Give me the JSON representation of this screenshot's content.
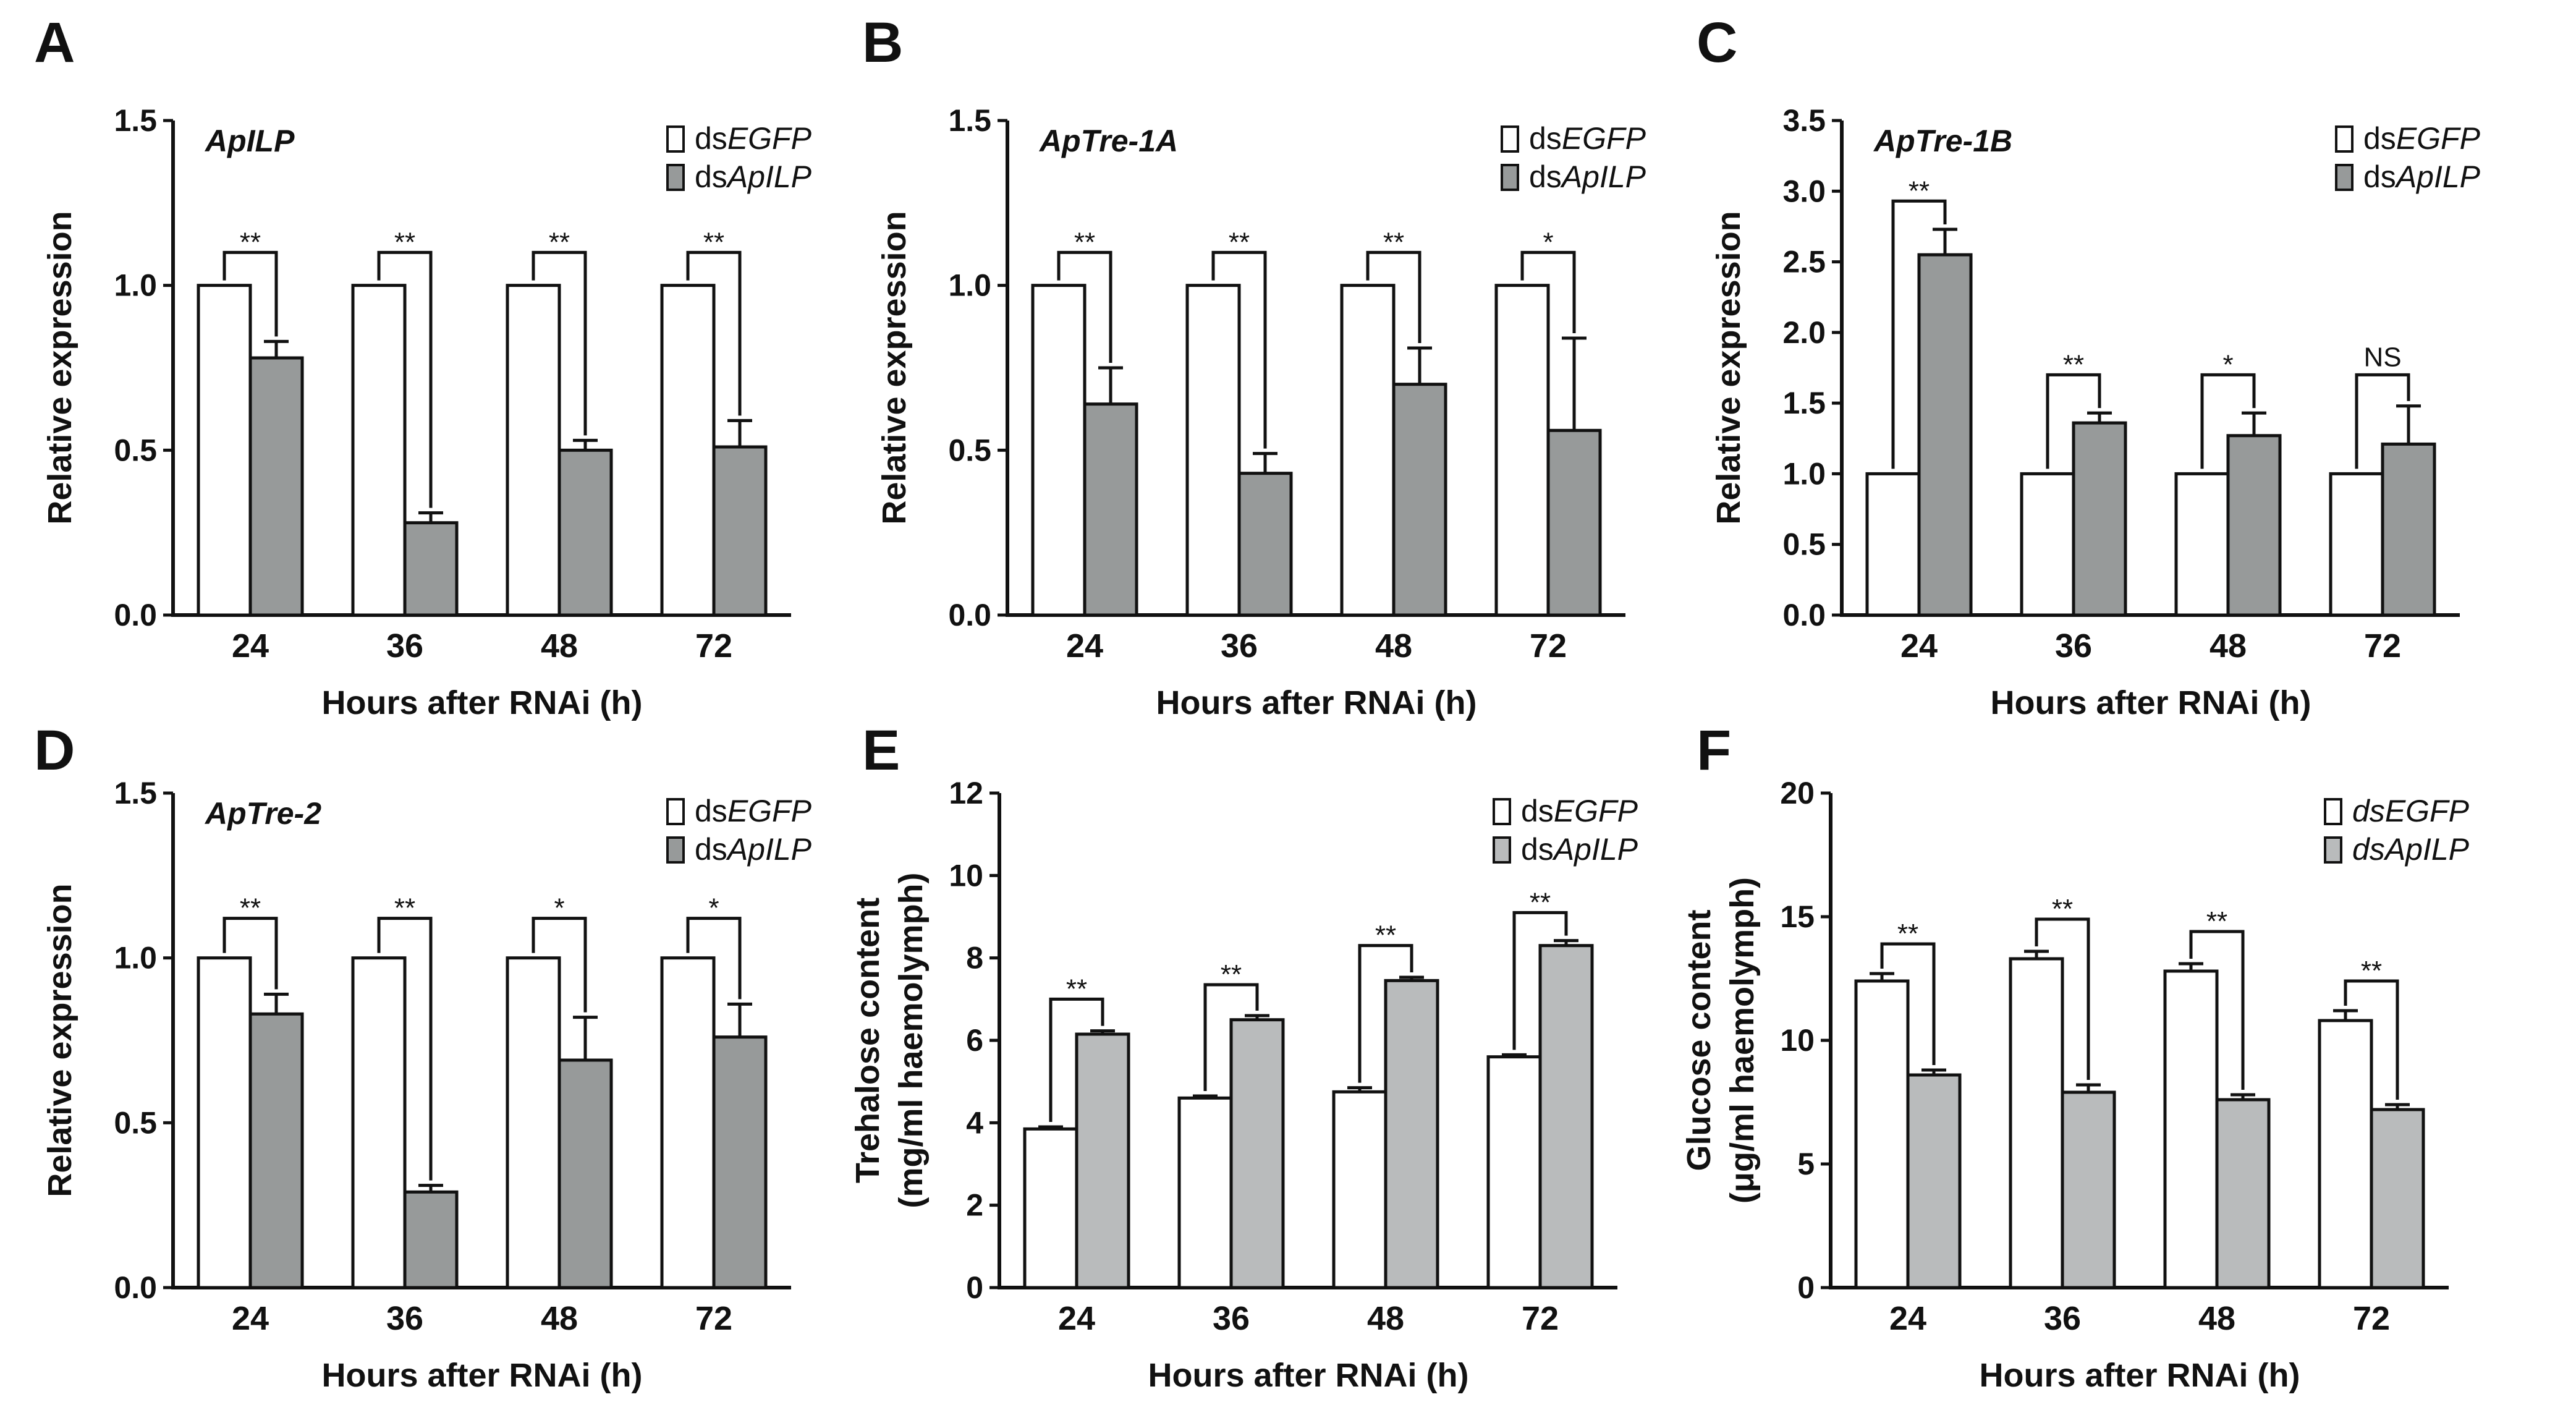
{
  "figure": {
    "description_letters": [
      "A",
      "B",
      "C",
      "D",
      "E",
      "F"
    ]
  },
  "chart_data": [
    {
      "panel": "A",
      "type": "bar",
      "title": "ApILP",
      "xlabel": "Hours after RNAi (h)",
      "ylabel": "Relative expression",
      "ylabel_line2": "",
      "categories": [
        "24",
        "36",
        "48",
        "72"
      ],
      "ylim": [
        0,
        1.5
      ],
      "yticks": [
        "0.0",
        "0.5",
        "1.0",
        "1.5"
      ],
      "ytick_values": [
        0,
        0.5,
        1.0,
        1.5
      ],
      "legend": {
        "entries": [
          [
            "ds",
            "EGFP"
          ],
          [
            "ds",
            "ApILP"
          ]
        ],
        "italic_prefix": false
      },
      "series": [
        {
          "name": "dsEGFP",
          "values": [
            1.0,
            1.0,
            1.0,
            1.0
          ],
          "errors": [
            0,
            0,
            0,
            0
          ],
          "color": "#ffffff"
        },
        {
          "name": "dsApILP",
          "values": [
            0.78,
            0.28,
            0.5,
            0.51
          ],
          "errors": [
            0.05,
            0.03,
            0.03,
            0.08
          ],
          "color": "#979a9a"
        }
      ],
      "significance": [
        "**",
        "**",
        "**",
        "**"
      ],
      "sig_levels": [
        1.1,
        1.1,
        1.1,
        1.1
      ]
    },
    {
      "panel": "B",
      "type": "bar",
      "title": "ApTre-1A",
      "xlabel": "Hours after RNAi (h)",
      "ylabel": "Relative expression",
      "ylabel_line2": "",
      "categories": [
        "24",
        "36",
        "48",
        "72"
      ],
      "ylim": [
        0,
        1.5
      ],
      "yticks": [
        "0.0",
        "0.5",
        "1.0",
        "1.5"
      ],
      "ytick_values": [
        0,
        0.5,
        1.0,
        1.5
      ],
      "legend": {
        "entries": [
          [
            "ds",
            "EGFP"
          ],
          [
            "ds",
            "ApILP"
          ]
        ],
        "italic_prefix": false
      },
      "series": [
        {
          "name": "dsEGFP",
          "values": [
            1.0,
            1.0,
            1.0,
            1.0
          ],
          "errors": [
            0,
            0,
            0,
            0
          ],
          "color": "#ffffff"
        },
        {
          "name": "dsApILP",
          "values": [
            0.64,
            0.43,
            0.7,
            0.56
          ],
          "errors": [
            0.11,
            0.06,
            0.11,
            0.28
          ],
          "color": "#979a9a"
        }
      ],
      "significance": [
        "**",
        "**",
        "**",
        "*"
      ],
      "sig_levels": [
        1.1,
        1.1,
        1.1,
        1.1
      ]
    },
    {
      "panel": "C",
      "type": "bar",
      "title": "ApTre-1B",
      "xlabel": "Hours after RNAi (h)",
      "ylabel": "Relative expression",
      "ylabel_line2": "",
      "categories": [
        "24",
        "36",
        "48",
        "72"
      ],
      "ylim": [
        0,
        3.5
      ],
      "yticks": [
        "0.0",
        "0.5",
        "1.0",
        "1.5",
        "2.0",
        "2.5",
        "3.0",
        "3.5"
      ],
      "ytick_values": [
        0,
        0.5,
        1.0,
        1.5,
        2.0,
        2.5,
        3.0,
        3.5
      ],
      "legend": {
        "entries": [
          [
            "ds",
            "EGFP"
          ],
          [
            "ds",
            "ApILP"
          ]
        ],
        "italic_prefix": false
      },
      "series": [
        {
          "name": "dsEGFP",
          "values": [
            1.0,
            1.0,
            1.0,
            1.0
          ],
          "errors": [
            0,
            0,
            0,
            0
          ],
          "color": "#ffffff"
        },
        {
          "name": "dsApILP",
          "values": [
            2.55,
            1.36,
            1.27,
            1.21
          ],
          "errors": [
            0.18,
            0.07,
            0.16,
            0.27
          ],
          "color": "#979a9a"
        }
      ],
      "significance": [
        "**",
        "**",
        "*",
        "NS"
      ],
      "sig_levels": [
        2.93,
        1.7,
        1.7,
        1.7
      ]
    },
    {
      "panel": "D",
      "type": "bar",
      "title": "ApTre-2",
      "xlabel": "Hours after RNAi (h)",
      "ylabel": "Relative expression",
      "ylabel_line2": "",
      "categories": [
        "24",
        "36",
        "48",
        "72"
      ],
      "ylim": [
        0,
        1.5
      ],
      "yticks": [
        "0.0",
        "0.5",
        "1.0",
        "1.5"
      ],
      "ytick_values": [
        0,
        0.5,
        1.0,
        1.5
      ],
      "legend": {
        "entries": [
          [
            "ds",
            "EGFP"
          ],
          [
            "ds",
            "ApILP"
          ]
        ],
        "italic_prefix": false
      },
      "series": [
        {
          "name": "dsEGFP",
          "values": [
            1.0,
            1.0,
            1.0,
            1.0
          ],
          "errors": [
            0,
            0,
            0,
            0
          ],
          "color": "#ffffff"
        },
        {
          "name": "dsApILP",
          "values": [
            0.83,
            0.29,
            0.69,
            0.76
          ],
          "errors": [
            0.06,
            0.02,
            0.13,
            0.1
          ],
          "color": "#979a9a"
        }
      ],
      "significance": [
        "**",
        "**",
        "*",
        "*"
      ],
      "sig_levels": [
        1.12,
        1.12,
        1.12,
        1.12
      ]
    },
    {
      "panel": "E",
      "type": "bar",
      "title": "",
      "xlabel": "Hours after RNAi (h)",
      "ylabel": "Trehalose content",
      "ylabel_line2": "(mg/ml haemolymph)",
      "categories": [
        "24",
        "36",
        "48",
        "72"
      ],
      "ylim": [
        0,
        12
      ],
      "yticks": [
        "0",
        "2",
        "4",
        "6",
        "8",
        "10",
        "12"
      ],
      "ytick_values": [
        0,
        2,
        4,
        6,
        8,
        10,
        12
      ],
      "legend": {
        "entries": [
          [
            "ds",
            "EGFP"
          ],
          [
            "ds",
            "ApILP"
          ]
        ],
        "italic_prefix": false
      },
      "series": [
        {
          "name": "dsEGFP",
          "values": [
            3.85,
            4.6,
            4.75,
            5.6
          ],
          "errors": [
            0.05,
            0.05,
            0.1,
            0.05
          ],
          "color": "#ffffff"
        },
        {
          "name": "dsApILP",
          "values": [
            6.15,
            6.5,
            7.45,
            8.3
          ],
          "errors": [
            0.08,
            0.1,
            0.08,
            0.12
          ],
          "color": "#b9bbbc"
        }
      ],
      "significance": [
        "**",
        "**",
        "**",
        "**"
      ],
      "sig_levels": [
        7.0,
        7.35,
        8.3,
        9.1
      ]
    },
    {
      "panel": "F",
      "type": "bar",
      "title": "",
      "xlabel": "Hours after RNAi (h)",
      "ylabel": "Glucose content",
      "ylabel_line2": "(μg/ml haemolymph)",
      "categories": [
        "24",
        "36",
        "48",
        "72"
      ],
      "ylim": [
        0,
        20
      ],
      "yticks": [
        "0",
        "5",
        "10",
        "15",
        "20"
      ],
      "ytick_values": [
        0,
        5,
        10,
        15,
        20
      ],
      "legend": {
        "entries": [
          [
            "ds",
            "EGFP"
          ],
          [
            "ds",
            "ApILP"
          ]
        ],
        "italic_prefix": true
      },
      "series": [
        {
          "name": "dsEGFP",
          "values": [
            12.4,
            13.3,
            12.8,
            10.8
          ],
          "errors": [
            0.3,
            0.3,
            0.3,
            0.4
          ],
          "color": "#ffffff"
        },
        {
          "name": "dsApILP",
          "values": [
            8.6,
            7.9,
            7.6,
            7.2
          ],
          "errors": [
            0.2,
            0.3,
            0.2,
            0.2
          ],
          "color": "#b9bbbc"
        }
      ],
      "significance": [
        "**",
        "**",
        "**",
        "**"
      ],
      "sig_levels": [
        13.9,
        14.9,
        14.4,
        12.4
      ]
    }
  ]
}
